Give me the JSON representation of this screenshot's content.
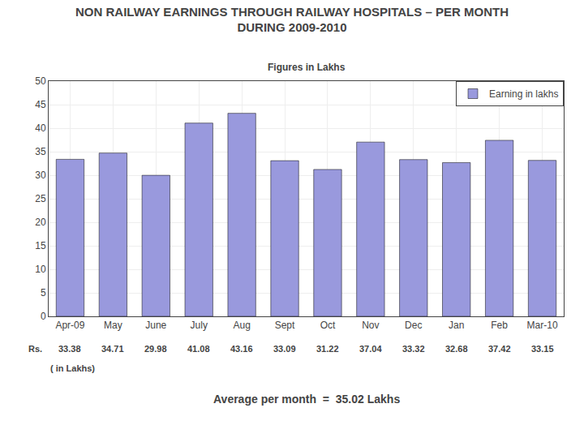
{
  "chart_data": {
    "type": "bar",
    "title": "NON RAILWAY EARNINGS THROUGH RAILWAY HOSPITALS – PER MONTH",
    "subtitle": "DURING 2009-2010",
    "annotations": [
      "Figures in Lakhs",
      "Rs.",
      "( in Lakhs)",
      "Average per month  =  35.02 Lakhs"
    ],
    "categories": [
      "Apr-09",
      "May",
      "June",
      "July",
      "Aug",
      "Sept",
      "Oct",
      "Nov",
      "Dec",
      "Jan",
      "Feb",
      "Mar-10"
    ],
    "series": [
      {
        "name": "Earning in lakhs",
        "color": "#9999dd",
        "values": [
          33.38,
          34.71,
          29.98,
          41.08,
          43.16,
          33.09,
          31.22,
          37.04,
          33.32,
          32.68,
          37.42,
          33.15
        ]
      }
    ],
    "ylim": [
      0,
      50
    ],
    "yticks": [
      0,
      5,
      10,
      15,
      20,
      25,
      30,
      35,
      40,
      45,
      50
    ],
    "grid": true,
    "legend": "upper right",
    "data_labels": true
  }
}
